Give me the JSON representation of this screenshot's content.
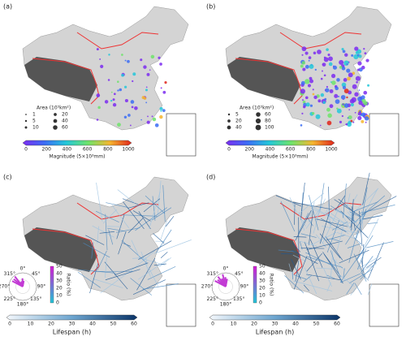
{
  "panels": [
    {
      "label": "(a)",
      "legend": {
        "title": "Area (10⁵km²)",
        "sizes": [
          1,
          5,
          10,
          20,
          40,
          60
        ]
      },
      "colorbar": {
        "label": "Magnitude (5×10³mm)",
        "ticks": [
          0,
          200,
          400,
          600,
          800,
          1000
        ]
      }
    },
    {
      "label": "(b)",
      "legend": {
        "title": "Area (10⁵km²)",
        "sizes": [
          5,
          20,
          40,
          60,
          80,
          100
        ]
      },
      "colorbar": {
        "label": "Magnitude (5×10³mm)",
        "ticks": [
          0,
          200,
          400,
          600,
          800,
          1000
        ]
      }
    },
    {
      "label": "(c)",
      "rose": {
        "angles": [
          "0°",
          "45°",
          "90°",
          "135°",
          "180°",
          "225°",
          "270°",
          "315°"
        ],
        "ticks": [
          0,
          10,
          20,
          30,
          40,
          50
        ],
        "label": "Ratio (%)"
      },
      "colorbar": {
        "label": "Lifespan (h)",
        "ticks": [
          0,
          10,
          20,
          30,
          40,
          50,
          60
        ]
      }
    },
    {
      "label": "(d)",
      "rose": {
        "angles": [
          "0°",
          "45°",
          "90°",
          "135°",
          "180°",
          "225°",
          "270°",
          "315°"
        ],
        "ticks": [
          0,
          10,
          20,
          30,
          40,
          50
        ],
        "label": "Ratio (%)"
      },
      "colorbar": {
        "label": "Lifespan (h)",
        "ticks": [
          0,
          10,
          20,
          30,
          40,
          50,
          60
        ]
      }
    }
  ]
}
